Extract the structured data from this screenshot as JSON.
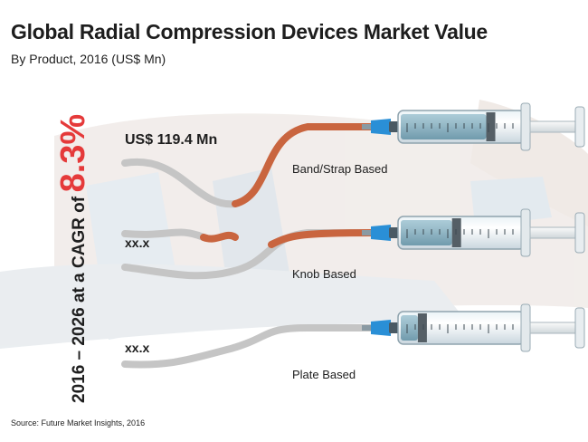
{
  "header": {
    "title": "Global Radial Compression Devices Market Value",
    "subtitle": "By Product, 2016 (US$ Mn)"
  },
  "cagr": {
    "prefix": "2016 – 2026 at a CAGR of",
    "value": "8.3%"
  },
  "source": "Source: Future Market Insights, 2016",
  "colors": {
    "accent_red": "#e53a3a",
    "tube_orange": "#c9653f",
    "tube_grey": "#bdbdbd",
    "needle_blue": "#2a8fd6"
  },
  "chart_data": {
    "type": "bar",
    "categories": [
      "Band/Strap Based",
      "Knob Based",
      "Plate Based"
    ],
    "values": [
      119.4,
      null,
      null
    ],
    "value_labels": [
      "US$ 119.4 Mn",
      "xx.x",
      "xx.x"
    ],
    "fill_levels": [
      0.75,
      0.45,
      0.15
    ],
    "title": "Global Radial Compression Devices Market Value",
    "subtitle": "By Product, 2016 (US$ Mn)"
  }
}
